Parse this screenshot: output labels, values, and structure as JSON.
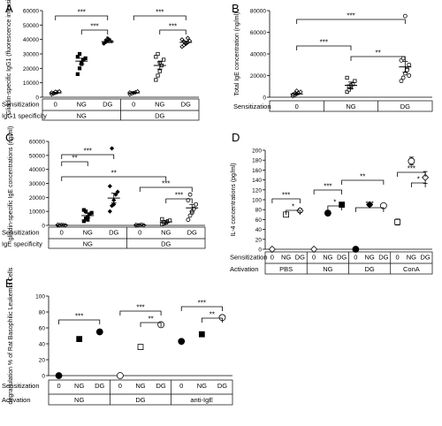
{
  "chart_data": [
    {
      "panel": "A",
      "type": "scatter",
      "ylabel": "Gliadin-specific IgG1 (fluorescence intensity)",
      "ylim": [
        0,
        60000
      ],
      "yticks": [
        "0",
        "10000",
        "20000",
        "30000",
        "40000",
        "50000",
        "60000"
      ],
      "row_labels": [
        "Sensitization",
        "IgG1 specificity"
      ],
      "categories": [
        "0",
        "NG",
        "DG",
        "0",
        "NG",
        "DG"
      ],
      "groups": [
        "NG",
        "DG"
      ],
      "marker_styles": [
        "open-diamond",
        "filled-square",
        "asterisk",
        "open-diamond",
        "open-square",
        "open-diamond"
      ],
      "means": [
        3000,
        25000,
        38500,
        3000,
        22000,
        38000
      ],
      "errors": [
        400,
        2000,
        700,
        400,
        2500,
        800
      ],
      "points": [
        [
          2000,
          2500,
          3000,
          3500,
          4000,
          3200,
          2800,
          3800
        ],
        [
          16000,
          20000,
          24000,
          26000,
          27000,
          28000,
          30000,
          23000
        ],
        [
          37000,
          38000,
          39000,
          40000,
          38500,
          37500,
          39500,
          41000
        ],
        [
          2000,
          2800,
          3000,
          3500,
          4000,
          3300,
          2600
        ],
        [
          12000,
          15000,
          18000,
          22000,
          26000,
          28000,
          30000,
          24000
        ],
        [
          35000,
          36000,
          37000,
          38000,
          39000,
          40000,
          38500,
          37500,
          41000
        ]
      ],
      "significance": [
        "***",
        "***",
        "***",
        "***"
      ]
    },
    {
      "panel": "B",
      "type": "scatter",
      "ylabel": "Total IgE concentration (ng/ml)",
      "ylim": [
        0,
        80000
      ],
      "yticks": [
        "0",
        "20000",
        "40000",
        "60000",
        "80000"
      ],
      "row_labels": [
        "Sensitization"
      ],
      "categories": [
        "0",
        "NG",
        "DG"
      ],
      "marker_styles": [
        "open-diamond",
        "open-square",
        "open-circle"
      ],
      "means": [
        3000,
        11000,
        28000
      ],
      "errors": [
        700,
        3000,
        5000
      ],
      "points": [
        [
          1000,
          2000,
          3000,
          4000,
          5000,
          2500,
          3500,
          6000
        ],
        [
          5000,
          7000,
          9000,
          12000,
          15000,
          18000,
          10000,
          11000
        ],
        [
          15000,
          18000,
          22000,
          26000,
          30000,
          34000,
          36000,
          75000,
          25000,
          20000
        ]
      ],
      "significance": [
        "***",
        "***",
        "**"
      ]
    },
    {
      "panel": "C",
      "type": "scatter",
      "ylabel": "gliadin-specific IgE concentrations (ng/ml)",
      "ylim": [
        0,
        60000
      ],
      "yticks": [
        "0",
        "10000",
        "20000",
        "30000",
        "40000",
        "50000",
        "60000"
      ],
      "row_labels": [
        "Sensitization",
        "IgE specificity"
      ],
      "categories": [
        "0",
        "NG",
        "DG",
        "0",
        "NG",
        "DG"
      ],
      "groups": [
        "NG",
        "DG"
      ],
      "marker_styles": [
        "open-diamond",
        "filled-square",
        "filled-diamond",
        "open-diamond",
        "open-square",
        "open-circle"
      ],
      "means": [
        300,
        7000,
        19500,
        300,
        2500,
        12500
      ],
      "errors": [
        100,
        1500,
        3500,
        100,
        800,
        2500
      ],
      "points": [
        [
          0,
          200,
          400,
          300,
          100,
          500,
          200
        ],
        [
          3000,
          5000,
          6000,
          8000,
          9000,
          11000,
          10000,
          4000
        ],
        [
          10000,
          14000,
          18000,
          22000,
          24000,
          28000,
          55000,
          15000
        ],
        [
          0,
          200,
          300,
          500,
          100,
          400
        ],
        [
          800,
          1500,
          2000,
          3000,
          3500,
          4500,
          2500
        ],
        [
          4000,
          7000,
          9000,
          12000,
          15000,
          18000,
          22000,
          10000
        ]
      ],
      "significance": [
        "***",
        "**",
        "**",
        "***",
        "***"
      ]
    },
    {
      "panel": "D",
      "type": "scatter",
      "ylabel": "IL-4 concentrations (pg/ml)",
      "ylim": [
        0,
        200
      ],
      "yticks": [
        "0",
        "20",
        "40",
        "60",
        "80",
        "100",
        "120",
        "140",
        "160",
        "180",
        "200"
      ],
      "row_labels": [
        "Sensitization",
        "Activation"
      ],
      "categories": [
        "0",
        "NG",
        "DG",
        "0",
        "NG",
        "DG",
        "0",
        "NG",
        "DG",
        "0",
        "NG",
        "DG"
      ],
      "groups": [
        "PBS",
        "NG",
        "DG",
        "ConA"
      ],
      "marker_styles": [
        "open-diamond",
        "open-square",
        "open-diamond",
        "open-diamond",
        "filled-circle",
        "filled-square",
        "filled-circle",
        "filled-diamond",
        "open-circle",
        "open-square",
        "open-circle",
        "open-diamond"
      ],
      "means": [
        0,
        70,
        78,
        0,
        73,
        90,
        0,
        90,
        88,
        55,
        178,
        145
      ],
      "errors": [
        0,
        5,
        4,
        0,
        3,
        4,
        0,
        3,
        3,
        6,
        8,
        12
      ],
      "significance": [
        "***",
        "*",
        "***",
        "*",
        "**",
        "***",
        "***",
        "*"
      ]
    },
    {
      "panel": "E",
      "type": "scatter",
      "ylabel": "degranulation % of Rat Basophilic Leukemia Cells",
      "ylim": [
        0,
        100
      ],
      "yticks": [
        "0",
        "20",
        "40",
        "60",
        "80",
        "100"
      ],
      "row_labels": [
        "Sensitization",
        "Activation"
      ],
      "categories": [
        "0",
        "NG",
        "DG",
        "0",
        "NG",
        "DG",
        "0",
        "NG",
        "DG"
      ],
      "groups": [
        "NG",
        "DG",
        "anti-IgE"
      ],
      "marker_styles": [
        "filled-circle",
        "filled-square",
        "filled-circle",
        "open-circle",
        "open-square",
        "open-circle",
        "filled-circle",
        "filled-square",
        "open-circle"
      ],
      "means": [
        0,
        46,
        55,
        0,
        36,
        64,
        43,
        52,
        73
      ],
      "errors": [
        0,
        1,
        2,
        0,
        3,
        3,
        1,
        2,
        2
      ],
      "significance": [
        "***",
        "***",
        "**",
        "***",
        "**"
      ]
    }
  ]
}
